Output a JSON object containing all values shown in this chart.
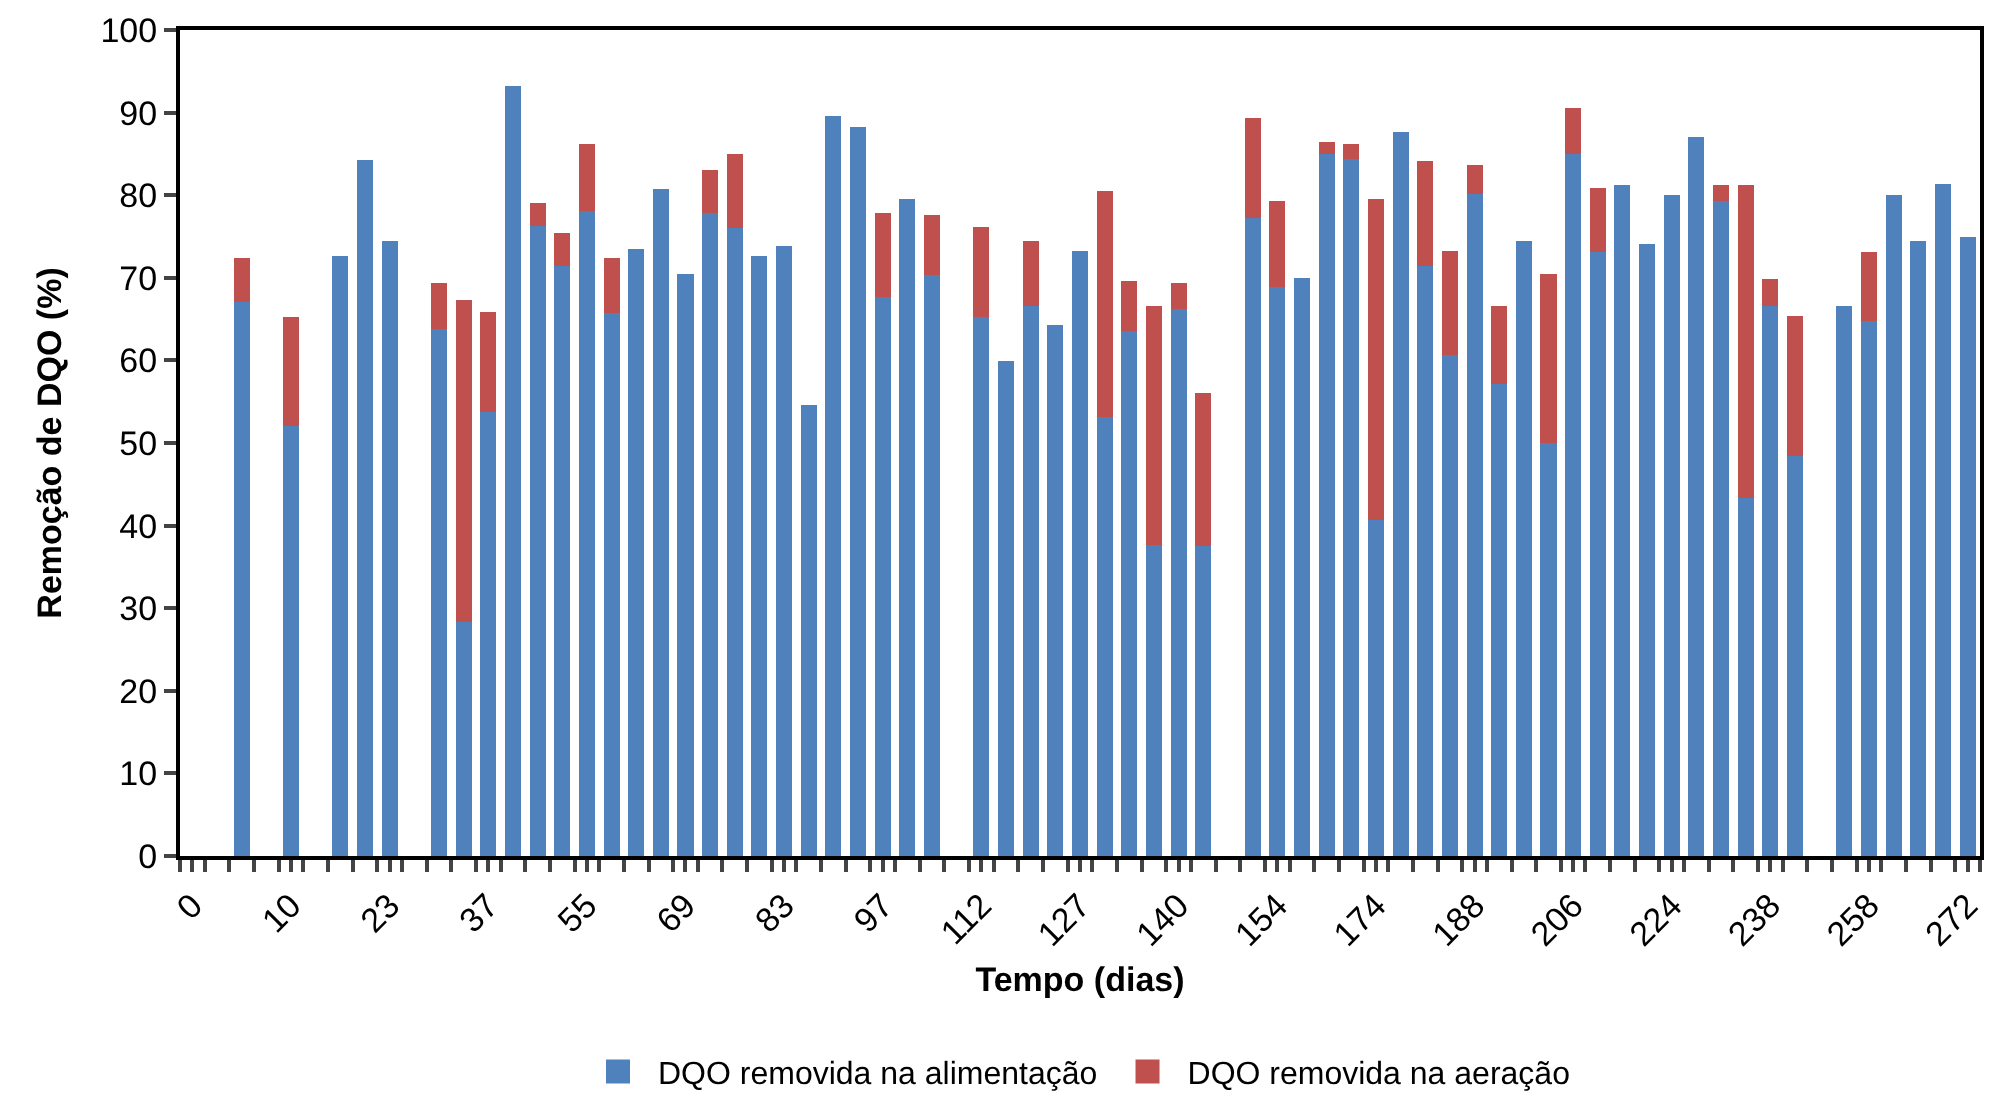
{
  "chart_data": {
    "type": "bar",
    "stacked": true,
    "xlabel": "Tempo (dias)",
    "ylabel": "Remoção de DQO (%)",
    "categories": [
      "0",
      null,
      null,
      null,
      "10",
      null,
      null,
      null,
      "23",
      null,
      null,
      null,
      "37",
      null,
      null,
      null,
      "55",
      null,
      null,
      null,
      "69",
      null,
      null,
      null,
      "83",
      null,
      null,
      null,
      "97",
      null,
      null,
      null,
      "112",
      null,
      null,
      null,
      "127",
      null,
      null,
      null,
      "140",
      null,
      null,
      null,
      "154",
      null,
      null,
      null,
      "174",
      null,
      null,
      null,
      "188",
      null,
      null,
      null,
      "206",
      null,
      null,
      null,
      "224",
      null,
      null,
      null,
      "238",
      null,
      null,
      null,
      "258",
      null,
      null,
      null,
      "272"
    ],
    "series": [
      {
        "name": "DQO removida na alimentação",
        "color": "#4f81bd",
        "values": [
          null,
          null,
          67.1,
          null,
          52.1,
          null,
          72.6,
          84.3,
          74.5,
          null,
          63.8,
          28.3,
          53.7,
          93.2,
          76.3,
          71.4,
          78.1,
          65.8,
          73.5,
          80.7,
          70.5,
          77.9,
          76.0,
          72.6,
          73.8,
          54.6,
          89.6,
          88.3,
          67.7,
          79.5,
          70.3,
          null,
          65.3,
          59.9,
          66.6,
          64.3,
          73.3,
          53.2,
          63.6,
          37.7,
          66.2,
          37.5,
          null,
          77.2,
          68.9,
          70.0,
          85.0,
          84.4,
          40.7,
          87.6,
          71.4,
          60.6,
          80.2,
          57.2,
          74.5,
          50.0,
          85.0,
          73.1,
          81.2,
          74.1,
          80.0,
          87.1,
          79.3,
          43.3,
          66.6,
          48.4,
          null,
          66.6,
          64.8,
          80.0,
          74.5,
          81.3,
          75.0
        ]
      },
      {
        "name": "DQO removida na aeração",
        "color": "#c0504d",
        "values": [
          null,
          null,
          5.3,
          null,
          13.1,
          null,
          null,
          null,
          null,
          null,
          5.6,
          39.0,
          12.2,
          null,
          2.7,
          4.0,
          8.1,
          6.6,
          null,
          null,
          null,
          5.1,
          9.0,
          null,
          null,
          null,
          null,
          null,
          10.2,
          null,
          7.3,
          null,
          10.8,
          null,
          7.9,
          null,
          null,
          27.3,
          6.0,
          28.9,
          3.2,
          18.6,
          null,
          12.1,
          10.4,
          null,
          1.4,
          1.8,
          38.8,
          null,
          12.7,
          12.7,
          3.4,
          9.4,
          null,
          20.5,
          5.6,
          7.8,
          null,
          null,
          null,
          null,
          1.9,
          37.9,
          3.3,
          17.0,
          null,
          null,
          8.3,
          null,
          null,
          null,
          null
        ]
      }
    ],
    "ylim": [
      0,
      100
    ],
    "yticks": [
      0,
      10,
      20,
      30,
      40,
      50,
      60,
      70,
      80,
      90,
      100
    ],
    "legend": "bottom"
  }
}
